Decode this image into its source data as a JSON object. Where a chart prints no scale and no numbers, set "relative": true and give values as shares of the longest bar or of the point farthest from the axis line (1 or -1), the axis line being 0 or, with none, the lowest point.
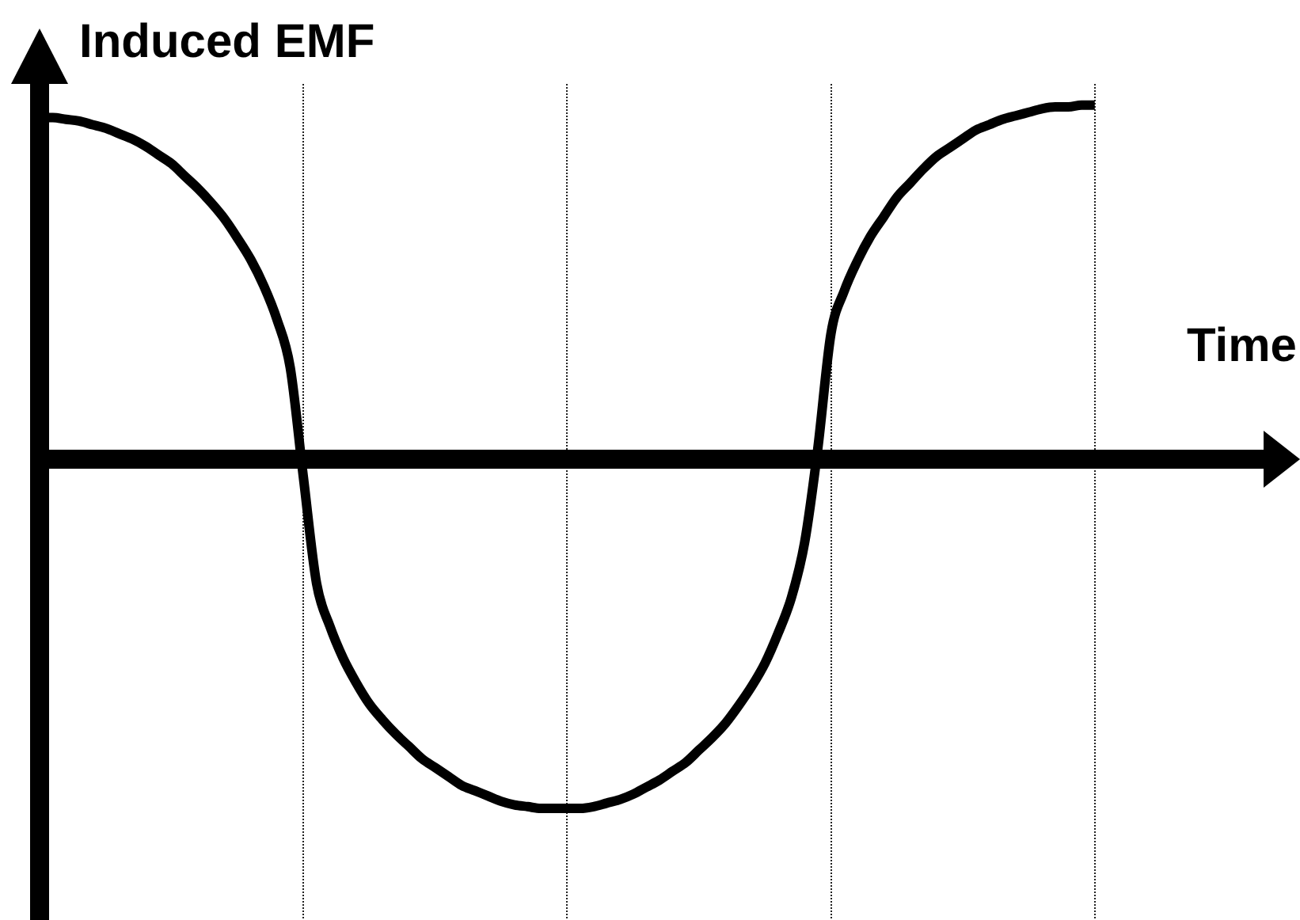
{
  "chart_data": {
    "type": "line",
    "xlabel": "Time",
    "ylabel": "Induced EMF",
    "relative": true,
    "categories": [
      null,
      null,
      null,
      null,
      null,
      null,
      null,
      null,
      null,
      null,
      null,
      null,
      null,
      null,
      null,
      null,
      null,
      null,
      null,
      null,
      null,
      null,
      null,
      null,
      null,
      null,
      null,
      null,
      null,
      null,
      null,
      null,
      null,
      null,
      null,
      null,
      null,
      null,
      null,
      null,
      null,
      null,
      null,
      null,
      null,
      null,
      null,
      null,
      null,
      null,
      null,
      null,
      null,
      null,
      null,
      null,
      null,
      null,
      null,
      null,
      null,
      null,
      null,
      null,
      null,
      null,
      null,
      null,
      null,
      null,
      null,
      null,
      null,
      null,
      null,
      null,
      null,
      null,
      null,
      null,
      null
    ],
    "values": [
      0.965,
      0.965,
      0.96,
      0.955,
      0.945,
      0.935,
      0.92,
      0.905,
      0.885,
      0.86,
      0.835,
      0.8,
      0.765,
      0.725,
      0.68,
      0.625,
      0.565,
      0.49,
      0.395,
      0.26,
      -0.05,
      -0.35,
      -0.47,
      -0.56,
      -0.63,
      -0.69,
      -0.735,
      -0.775,
      -0.81,
      -0.845,
      -0.87,
      -0.895,
      -0.92,
      -0.935,
      -0.95,
      -0.965,
      -0.975,
      -0.98,
      -0.985,
      -0.985,
      -0.985,
      -0.985,
      -0.98,
      -0.97,
      -0.96,
      -0.945,
      -0.925,
      -0.905,
      -0.88,
      -0.855,
      -0.82,
      -0.785,
      -0.745,
      -0.695,
      -0.64,
      -0.575,
      -0.49,
      -0.39,
      -0.235,
      0.03,
      0.355,
      0.475,
      0.56,
      0.63,
      0.685,
      0.74,
      0.78,
      0.82,
      0.855,
      0.88,
      0.905,
      0.93,
      0.945,
      0.96,
      0.97,
      0.98,
      0.99,
      0.995,
      0.995,
      1,
      1
    ],
    "color": "#000000",
    "grid": "x"
  }
}
